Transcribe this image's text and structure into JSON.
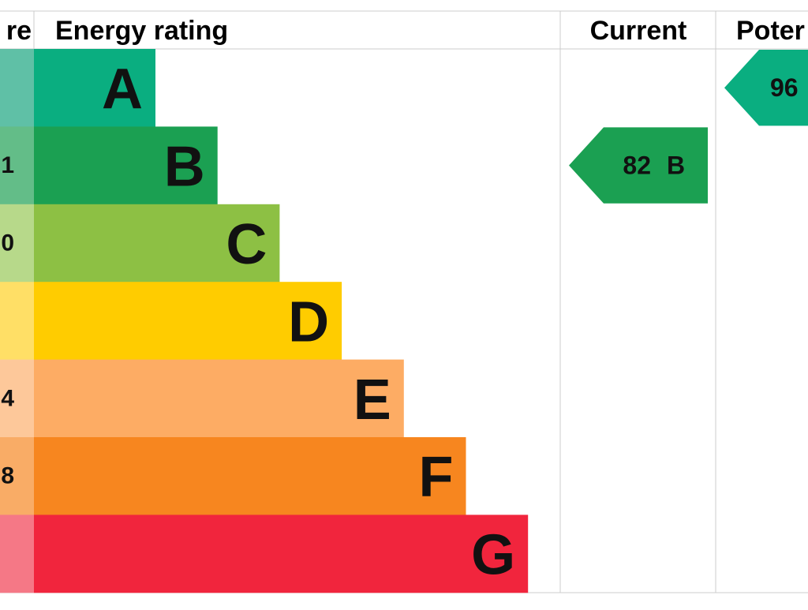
{
  "header": {
    "score": "re",
    "rating": "Energy rating",
    "current": "Current",
    "potential": "Poter"
  },
  "bands": [
    {
      "letter": "A",
      "color": "#0aae80",
      "tint": "#5fc0a6"
    },
    {
      "letter": "B",
      "color": "#1ba052",
      "tint": "#63bd88",
      "score": "1"
    },
    {
      "letter": "C",
      "color": "#8dc044",
      "tint": "#b7d98a",
      "score": "0"
    },
    {
      "letter": "D",
      "color": "#ffcc00",
      "tint": "#ffdf66"
    },
    {
      "letter": "E",
      "color": "#fdac64",
      "tint": "#fdc89a",
      "score": "4"
    },
    {
      "letter": "F",
      "color": "#f7861f",
      "tint": "#f9ac66",
      "score": "8"
    },
    {
      "letter": "G",
      "color": "#f1253d",
      "tint": "#f57886"
    }
  ],
  "current": {
    "score": "82",
    "band": "B",
    "color": "#1ba052"
  },
  "potential": {
    "score": "96",
    "color": "#0aae80"
  }
}
